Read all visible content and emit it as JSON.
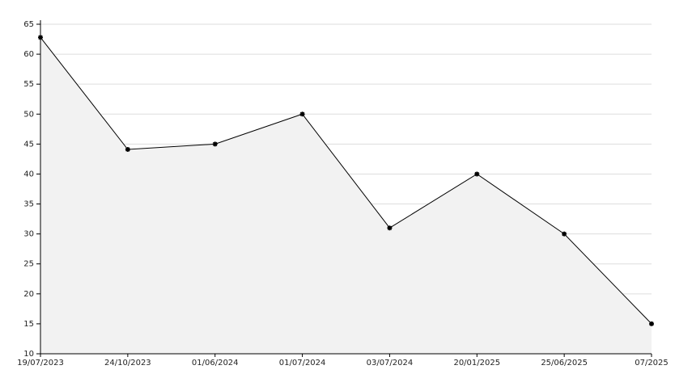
{
  "chart_data": {
    "type": "area",
    "categories": [
      "19/07/2023",
      "24/10/2023",
      "01/06/2024",
      "01/07/2024",
      "03/07/2024",
      "20/01/2025",
      "25/06/2025",
      "07/2025"
    ],
    "values": [
      62.8,
      44.1,
      45,
      50,
      31,
      40,
      30,
      15
    ],
    "color": "#000000",
    "fill": "#f2f2f2",
    "ylim": [
      10,
      65
    ],
    "yticks": [
      10,
      15,
      20,
      25,
      30,
      35,
      40,
      45,
      50,
      55,
      60,
      65
    ],
    "grid": true
  }
}
